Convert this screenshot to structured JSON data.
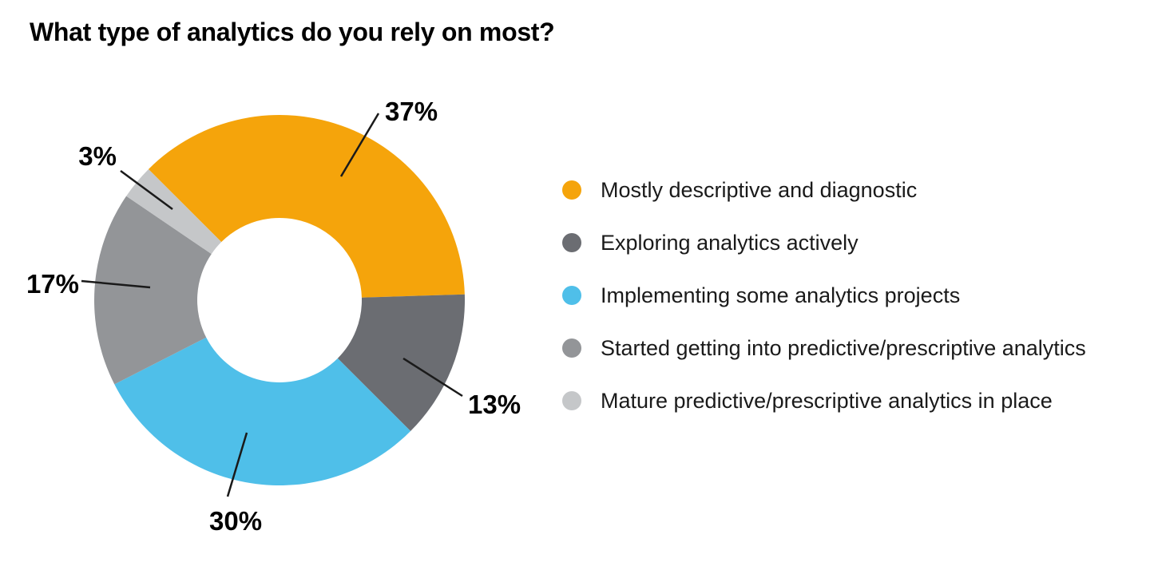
{
  "title": "What type of analytics do you rely on most?",
  "colors": {
    "background": "#FFFFFF",
    "title_text": "#000000",
    "label_text": "#000000",
    "legend_text": "#1A1A1A",
    "leader_line": "#1A1A1A"
  },
  "chart_data": {
    "type": "pie",
    "subtype": "donut",
    "title": "What type of analytics do you rely on most?",
    "unit": "%",
    "legend_position": "right",
    "direction": "clockwise",
    "start_angle_deg_from_top": -45,
    "slices": [
      {
        "label": "Mostly descriptive and diagnostic",
        "value": 37,
        "value_label": "37%",
        "color": "#F5A40B"
      },
      {
        "label": "Exploring analytics actively",
        "value": 13,
        "value_label": "13%",
        "color": "#6B6D72"
      },
      {
        "label": "Implementing some analytics projects",
        "value": 30,
        "value_label": "30%",
        "color": "#4FBFE9"
      },
      {
        "label": "Started getting into predictive/prescriptive analytics",
        "value": 17,
        "value_label": "17%",
        "color": "#939598"
      },
      {
        "label": "Mature predictive/prescriptive analytics in place",
        "value": 3,
        "value_label": "3%",
        "color": "#C5C7C9"
      }
    ]
  }
}
